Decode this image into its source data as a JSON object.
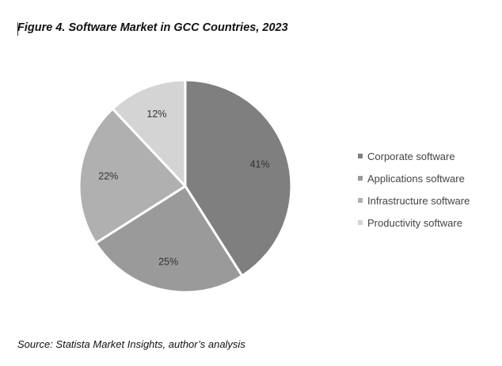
{
  "figure": {
    "title": "Figure 4. Software Market in GCC Countries, 2023",
    "source": "Source: Statista Market Insights, author’s analysis"
  },
  "chart_data": {
    "type": "pie",
    "title": "Figure 4. Software Market in GCC Countries, 2023",
    "categories": [
      "Corporate software",
      "Applications software",
      "Infrastructure software",
      "Productivity software"
    ],
    "values": [
      41,
      25,
      22,
      12
    ],
    "value_labels": [
      "41%",
      "25%",
      "22%",
      "12%"
    ],
    "colors": [
      "#7f7f7f",
      "#9a9a9a",
      "#b0b0b0",
      "#d4d4d4"
    ],
    "legend_position": "right",
    "start_angle": "12 o'clock",
    "direction": "clockwise"
  }
}
